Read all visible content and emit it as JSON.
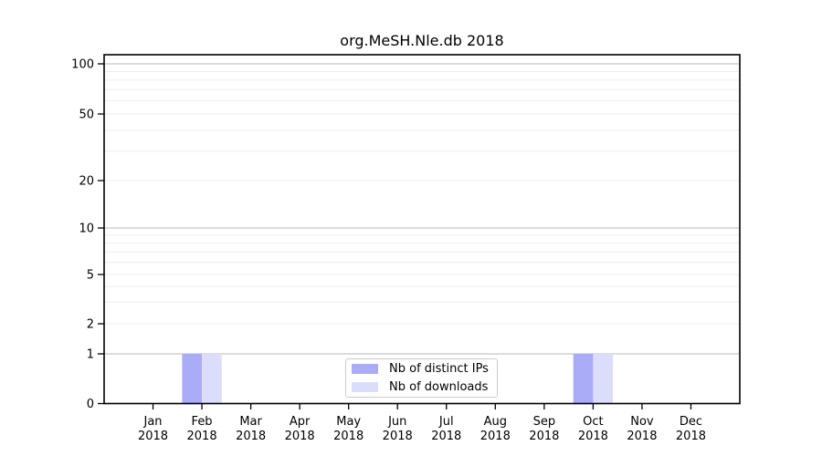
{
  "chart_data": {
    "type": "bar",
    "title": "org.MeSH.Nle.db 2018",
    "categories": [
      "Jan 2018",
      "Feb 2018",
      "Mar 2018",
      "Apr 2018",
      "May 2018",
      "Jun 2018",
      "Jul 2018",
      "Aug 2018",
      "Sep 2018",
      "Oct 2018",
      "Nov 2018",
      "Dec 2018"
    ],
    "series": [
      {
        "name": "Nb of distinct IPs",
        "color": "#aaacf8",
        "values": [
          0,
          1,
          0,
          0,
          0,
          0,
          0,
          0,
          0,
          1,
          0,
          0
        ]
      },
      {
        "name": "Nb of downloads",
        "color": "#dbddfa",
        "values": [
          0,
          1,
          0,
          0,
          0,
          0,
          0,
          0,
          0,
          1,
          0,
          0
        ]
      }
    ],
    "xlabel": "",
    "ylabel": "",
    "yscale": "log-like",
    "ylim": [
      0,
      115
    ],
    "y_major_ticks": [
      0,
      1,
      2,
      5,
      10,
      20,
      50,
      100
    ],
    "y_minor_gridlines": [
      3,
      4,
      6,
      7,
      8,
      9,
      30,
      40,
      60,
      70,
      80,
      90
    ],
    "y_decade_gridlines": [
      1,
      10,
      100
    ],
    "grid": "horizontal",
    "legend_position": "bottom-center-inside",
    "colors": {
      "grid_decade": "#c6c6c6",
      "grid_minor": "#ededed",
      "axis": "#000000",
      "background": "#ffffff",
      "legend_border": "#cccccc"
    }
  }
}
